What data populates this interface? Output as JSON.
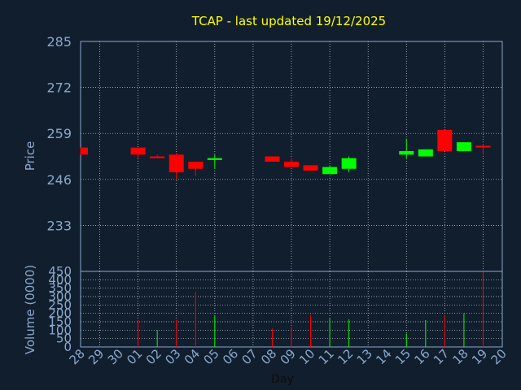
{
  "chart_data": [
    {
      "type": "candlestick",
      "title": "TCAP - last updated 19/12/2025",
      "xlabel": "",
      "ylabel": "Price",
      "ylim": [
        220,
        285
      ],
      "yticks": [
        233,
        246,
        259,
        272,
        285
      ],
      "grid": true,
      "categories": [
        "28",
        "29",
        "30",
        "01",
        "02",
        "03",
        "04",
        "05",
        "06",
        "07",
        "08",
        "09",
        "10",
        "11",
        "12",
        "13",
        "14",
        "15",
        "16",
        "17",
        "18",
        "19",
        "20"
      ],
      "candles": [
        {
          "x": "28",
          "open": 255,
          "close": 253,
          "high": 255,
          "low": 253
        },
        {
          "x": "01",
          "open": 255,
          "close": 253,
          "high": 255,
          "low": 252
        },
        {
          "x": "02",
          "open": 252.5,
          "close": 252,
          "high": 253,
          "low": 252
        },
        {
          "x": "03",
          "open": 253,
          "close": 248,
          "high": 253.5,
          "low": 246
        },
        {
          "x": "04",
          "open": 251,
          "close": 249,
          "high": 251,
          "low": 247
        },
        {
          "x": "05",
          "open": 251.5,
          "close": 252,
          "high": 253,
          "low": 249
        },
        {
          "x": "08",
          "open": 252.5,
          "close": 251,
          "high": 252.5,
          "low": 251
        },
        {
          "x": "09",
          "open": 251,
          "close": 249.5,
          "high": 252,
          "low": 249.5
        },
        {
          "x": "10",
          "open": 250,
          "close": 248.5,
          "high": 250,
          "low": 248.5
        },
        {
          "x": "11",
          "open": 247.5,
          "close": 249.5,
          "high": 250,
          "low": 247.5
        },
        {
          "x": "12",
          "open": 249,
          "close": 252,
          "high": 252.5,
          "low": 248
        },
        {
          "x": "15",
          "open": 253,
          "close": 254,
          "high": 257.5,
          "low": 252
        },
        {
          "x": "16",
          "open": 252.5,
          "close": 254.5,
          "high": 254.5,
          "low": 252.5
        },
        {
          "x": "17",
          "open": 260,
          "close": 254,
          "high": 260,
          "low": 254
        },
        {
          "x": "18",
          "open": 254,
          "close": 256.5,
          "high": 256.5,
          "low": 254
        },
        {
          "x": "19",
          "open": 255.5,
          "close": 255,
          "high": 256,
          "low": 253
        }
      ],
      "up_color": "#00ff00",
      "down_color": "#ff0000"
    },
    {
      "type": "bar",
      "xlabel": "Day",
      "ylabel": "Volume (0000)",
      "ylim": [
        0,
        450
      ],
      "yticks": [
        0,
        50,
        100,
        150,
        200,
        250,
        300,
        350,
        400,
        450
      ],
      "grid": true,
      "categories": [
        "28",
        "29",
        "30",
        "01",
        "02",
        "03",
        "04",
        "05",
        "06",
        "07",
        "08",
        "09",
        "10",
        "11",
        "12",
        "13",
        "14",
        "15",
        "16",
        "17",
        "18",
        "19",
        "20"
      ],
      "bars": [
        {
          "x": "01",
          "value": 160,
          "color": "#ff0000"
        },
        {
          "x": "02",
          "value": 100,
          "color": "#00ff00"
        },
        {
          "x": "03",
          "value": 160,
          "color": "#ff0000"
        },
        {
          "x": "04",
          "value": 330,
          "color": "#ff0000"
        },
        {
          "x": "05",
          "value": 185,
          "color": "#00ff00"
        },
        {
          "x": "08",
          "value": 110,
          "color": "#ff0000"
        },
        {
          "x": "09",
          "value": 120,
          "color": "#ff0000"
        },
        {
          "x": "10",
          "value": 190,
          "color": "#ff0000"
        },
        {
          "x": "11",
          "value": 170,
          "color": "#00ff00"
        },
        {
          "x": "12",
          "value": 165,
          "color": "#00ff00"
        },
        {
          "x": "15",
          "value": 80,
          "color": "#00ff00"
        },
        {
          "x": "16",
          "value": 160,
          "color": "#00ff00"
        },
        {
          "x": "17",
          "value": 190,
          "color": "#ff0000"
        },
        {
          "x": "18",
          "value": 200,
          "color": "#00ff00"
        },
        {
          "x": "19",
          "value": 450,
          "color": "#ff0000"
        }
      ]
    }
  ],
  "colors": {
    "background": "#111e2e",
    "title": "#ffff00",
    "axis_text": "#8aa8cc",
    "grid": "#c8d2dc",
    "frame": "#8aa8cc"
  }
}
